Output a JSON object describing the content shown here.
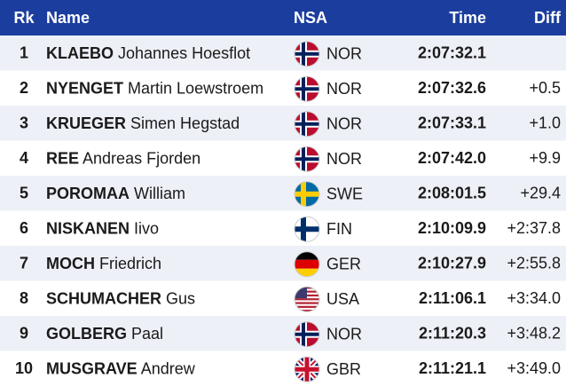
{
  "table": {
    "header": [
      "Rk",
      "Name",
      "NSA",
      "Time",
      "Diff"
    ],
    "rows": [
      {
        "rank": 1,
        "surname": "KLAEBO",
        "given": "Johannes Hoesflot",
        "nsa": "NOR",
        "time": "2:07:32.1"
      },
      {
        "rank": 2,
        "surname": "NYENGET",
        "given": "Martin Loewstroem",
        "nsa": "NOR",
        "time": "2:07:32.6",
        "diff": "+0.5"
      },
      {
        "rank": 3,
        "surname": "KRUEGER",
        "given": "Simen Hegstad",
        "nsa": "NOR",
        "time": "2:07:33.1",
        "diff": "+1.0"
      },
      {
        "rank": 4,
        "surname": "REE",
        "given": "Andreas Fjorden",
        "nsa": "NOR",
        "time": "2:07:42.0",
        "diff": "+9.9"
      },
      {
        "rank": 5,
        "surname": "POROMAA",
        "given": "William",
        "nsa": "SWE",
        "time": "2:08:01.5",
        "diff": "+29.4"
      },
      {
        "rank": 6,
        "surname": "NISKANEN",
        "given": "Iivo",
        "nsa": "FIN",
        "time": "2:10:09.9",
        "diff": "+2:37.8"
      },
      {
        "rank": 7,
        "surname": "MOCH",
        "given": "Friedrich",
        "nsa": "GER",
        "time": "2:10:27.9",
        "diff": "+2:55.8"
      },
      {
        "rank": 8,
        "surname": "SCHUMACHER",
        "given": "Gus",
        "nsa": "USA",
        "time": "2:11:06.1",
        "diff": "+3:34.0"
      },
      {
        "rank": 9,
        "surname": "GOLBERG",
        "given": "Paal",
        "nsa": "NOR",
        "time": "2:11:20.3",
        "diff": "+3:48.2"
      },
      {
        "rank": 10,
        "surname": "MUSGRAVE",
        "given": "Andrew",
        "nsa": "GBR",
        "time": "2:11:21.1",
        "diff": "+3:49.0"
      }
    ]
  }
}
